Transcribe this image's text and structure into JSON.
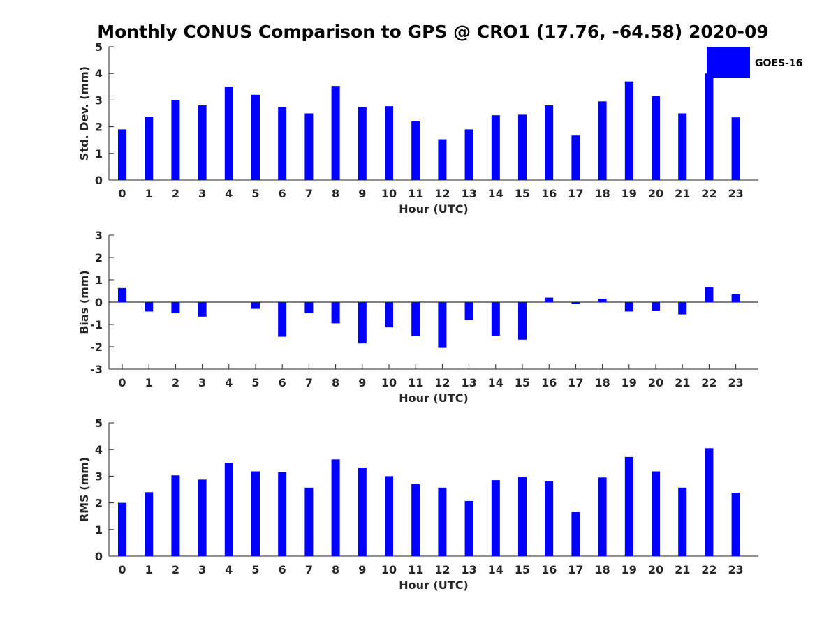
{
  "chart_data": {
    "title": "Monthly CONUS Comparison to GPS @ CRO1 (17.76, -64.58) 2020-09",
    "legend": {
      "label": "GOES-16",
      "color": "#0000ff",
      "placement": "top-right"
    },
    "panels": [
      {
        "type": "bar",
        "ylabel": "Std. Dev. (mm)",
        "xlabel": "Hour (UTC)",
        "ylim": [
          0,
          5
        ],
        "yticks": [
          0,
          1,
          2,
          3,
          4,
          5
        ],
        "categories": [
          "0",
          "1",
          "2",
          "3",
          "4",
          "5",
          "6",
          "7",
          "8",
          "9",
          "10",
          "11",
          "12",
          "13",
          "14",
          "15",
          "16",
          "17",
          "18",
          "19",
          "20",
          "21",
          "22",
          "23"
        ],
        "series": [
          {
            "name": "GOES-16",
            "color": "#0000ff",
            "values": [
              1.9,
              2.37,
              3.0,
              2.8,
              3.5,
              3.2,
              2.73,
              2.5,
              3.53,
              2.73,
              2.77,
              2.2,
              1.53,
              1.9,
              2.43,
              2.45,
              2.8,
              1.67,
              2.95,
              3.7,
              3.15,
              2.5,
              4.0,
              2.35
            ]
          }
        ]
      },
      {
        "type": "bar",
        "ylabel": "Bias (mm)",
        "xlabel": "Hour (UTC)",
        "ylim": [
          -3,
          3
        ],
        "yticks": [
          -3,
          -2,
          -1,
          0,
          1,
          2,
          3
        ],
        "categories": [
          "0",
          "1",
          "2",
          "3",
          "4",
          "5",
          "6",
          "7",
          "8",
          "9",
          "10",
          "11",
          "12",
          "13",
          "14",
          "15",
          "16",
          "17",
          "18",
          "19",
          "20",
          "21",
          "22",
          "23"
        ],
        "series": [
          {
            "name": "GOES-16",
            "color": "#0000ff",
            "values": [
              0.63,
              -0.42,
              -0.5,
              -0.65,
              0.0,
              -0.3,
              -1.55,
              -0.5,
              -0.95,
              -1.85,
              -1.13,
              -1.52,
              -2.05,
              -0.8,
              -1.5,
              -1.68,
              0.2,
              -0.08,
              0.15,
              -0.42,
              -0.38,
              -0.55,
              0.67,
              0.35
            ]
          }
        ]
      },
      {
        "type": "bar",
        "ylabel": "RMS (mm)",
        "xlabel": "Hour (UTC)",
        "ylim": [
          0,
          5
        ],
        "yticks": [
          0,
          1,
          2,
          3,
          4,
          5
        ],
        "categories": [
          "0",
          "1",
          "2",
          "3",
          "4",
          "5",
          "6",
          "7",
          "8",
          "9",
          "10",
          "11",
          "12",
          "13",
          "14",
          "15",
          "16",
          "17",
          "18",
          "19",
          "20",
          "21",
          "22",
          "23"
        ],
        "series": [
          {
            "name": "GOES-16",
            "color": "#0000ff",
            "values": [
              2.0,
              2.4,
              3.03,
              2.87,
              3.5,
              3.18,
              3.15,
              2.57,
              3.63,
              3.32,
              3.0,
              2.7,
              2.57,
              2.07,
              2.85,
              2.97,
              2.8,
              1.65,
              2.95,
              3.72,
              3.18,
              2.57,
              4.05,
              2.38
            ]
          }
        ]
      }
    ]
  }
}
